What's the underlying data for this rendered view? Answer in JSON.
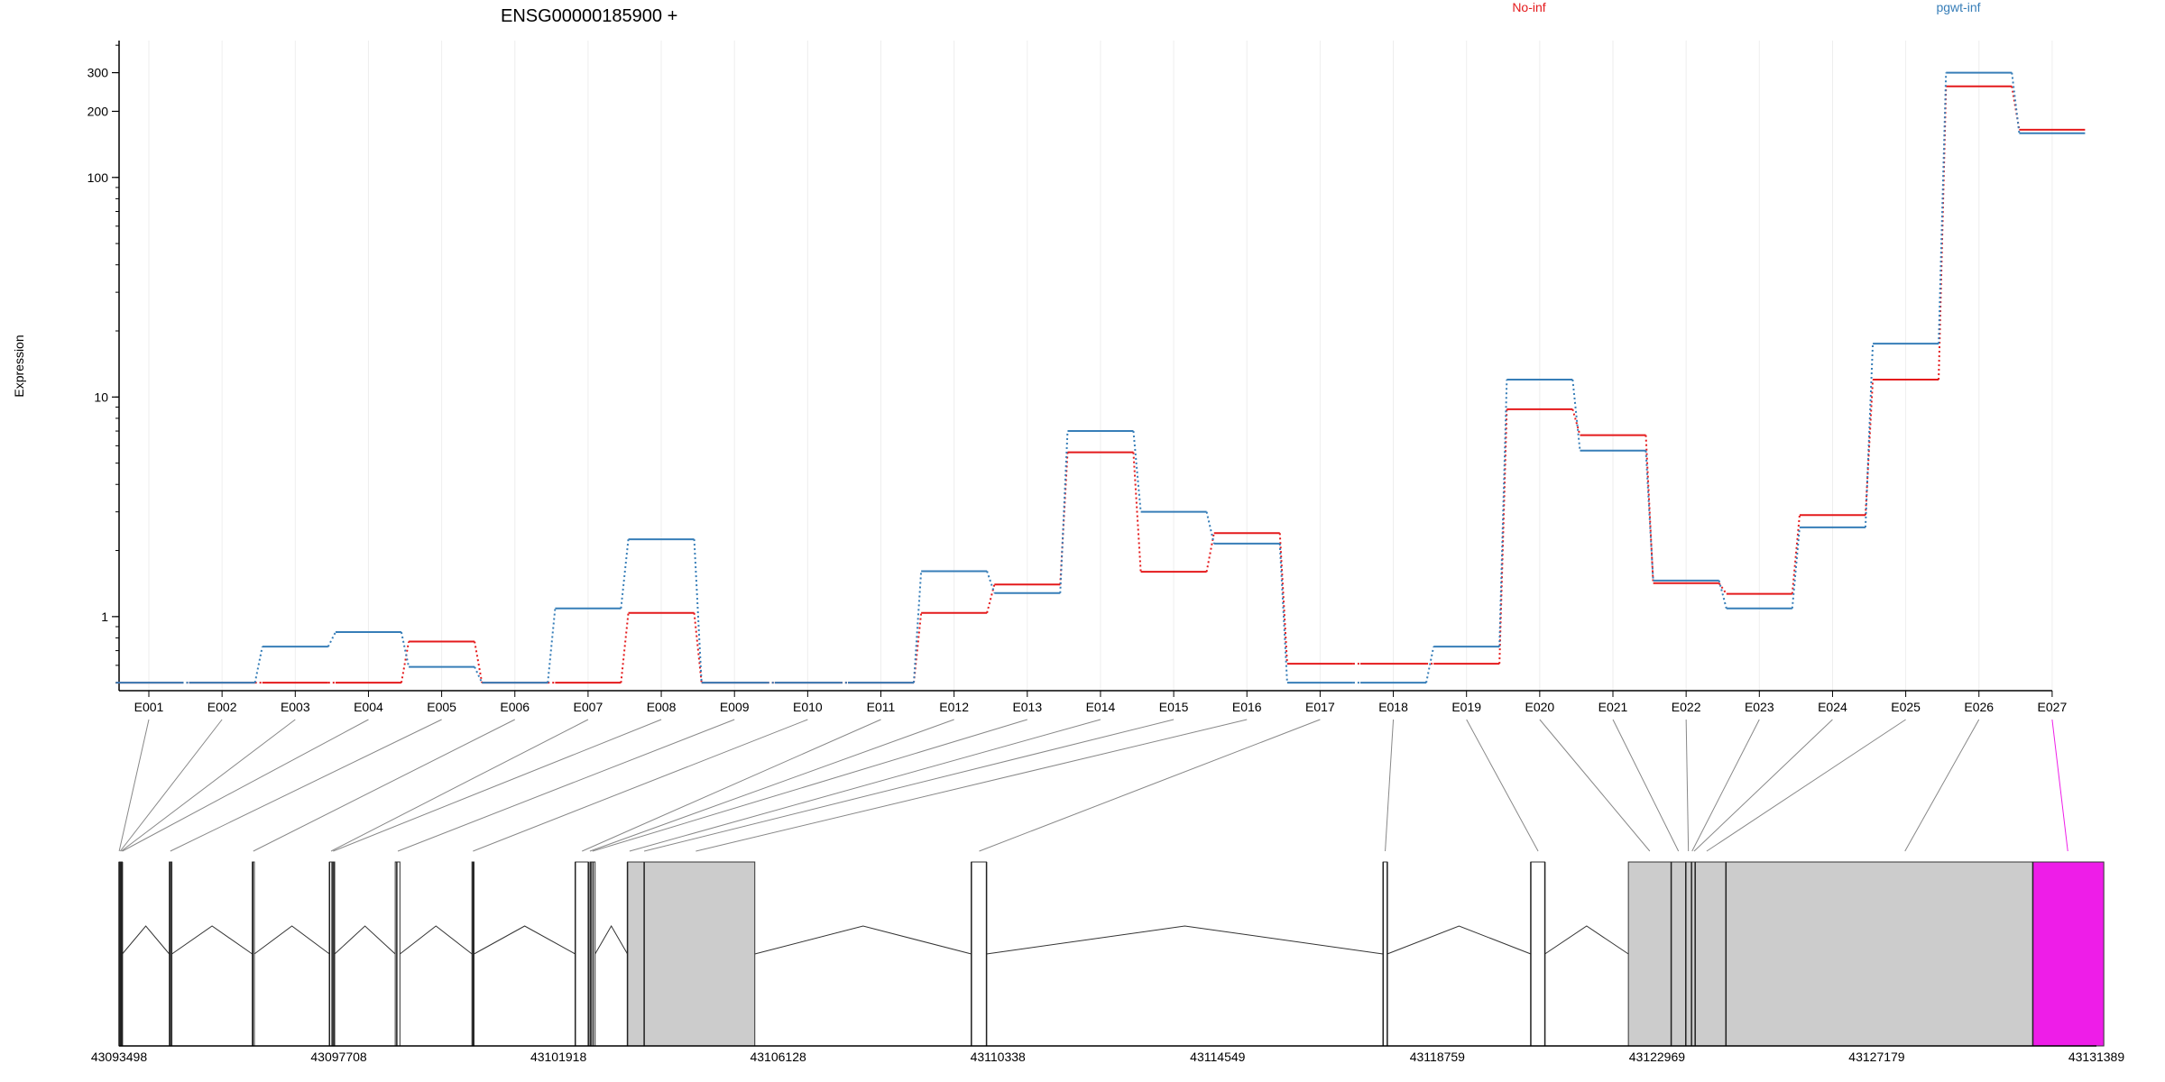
{
  "chart_data": {
    "type": "line",
    "title": "ENSG00000185900 +",
    "ylabel": "Expression",
    "yscale": "log",
    "ylim": [
      0.46,
      420
    ],
    "yticks": [
      1,
      10,
      100,
      200,
      300
    ],
    "ytick_labels": [
      "1",
      "10",
      "100",
      "200",
      "300"
    ],
    "categories": [
      "E001",
      "E002",
      "E003",
      "E004",
      "E005",
      "E006",
      "E007",
      "E008",
      "E009",
      "E010",
      "E011",
      "E012",
      "E013",
      "E014",
      "E015",
      "E016",
      "E017",
      "E018",
      "E019",
      "E020",
      "E021",
      "E022",
      "E023",
      "E024",
      "E025",
      "E026",
      "E027"
    ],
    "series": [
      {
        "name": "No-inf",
        "color": "#e41a1c",
        "values": [
          0.5,
          0.5,
          0.5,
          0.5,
          0.77,
          0.5,
          0.5,
          1.04,
          0.5,
          0.5,
          0.5,
          1.04,
          1.4,
          5.6,
          1.6,
          2.4,
          0.61,
          0.61,
          0.61,
          8.8,
          6.7,
          1.42,
          1.27,
          2.9,
          12.0,
          260,
          165
        ]
      },
      {
        "name": "pgwt-inf",
        "color": "#377eb8",
        "values": [
          0.5,
          0.5,
          0.73,
          0.85,
          0.59,
          0.5,
          1.09,
          2.25,
          0.5,
          0.5,
          0.5,
          1.61,
          1.28,
          7.0,
          3.0,
          2.15,
          0.5,
          0.5,
          0.73,
          12.0,
          5.7,
          1.46,
          1.09,
          2.55,
          17.5,
          300,
          159
        ]
      }
    ],
    "legend_placement": "top",
    "grid": "vertical",
    "gene_model": {
      "coordinate_ticks": [
        "43093498",
        "43097708",
        "43101918",
        "43106128",
        "43110338",
        "43114549",
        "43118759",
        "43122969",
        "43127179",
        "43131389"
      ],
      "coordinate_tick_values": [
        43093498,
        43097708,
        43101918,
        43106128,
        43110338,
        43114549,
        43118759,
        43122969,
        43127179,
        43131389
      ],
      "exons": [
        {
          "start": 43093498,
          "end": 43093560,
          "fill": "#cccccc"
        },
        {
          "start": 43094460,
          "end": 43094510,
          "fill": "#ffffff"
        },
        {
          "start": 43096050,
          "end": 43096090,
          "fill": "#ffffff"
        },
        {
          "start": 43097530,
          "end": 43097630,
          "fill": "#ffffff"
        },
        {
          "start": 43098790,
          "end": 43098880,
          "fill": "#ffffff"
        },
        {
          "start": 43100260,
          "end": 43100300,
          "fill": "#ffffff"
        },
        {
          "start": 43102240,
          "end": 43102490,
          "fill": "#ffffff"
        },
        {
          "start": 43102520,
          "end": 43102620,
          "fill": "#ffffff"
        },
        {
          "start": 43103240,
          "end": 43103560,
          "fill": "#cccccc"
        },
        {
          "start": 43103560,
          "end": 43105680,
          "fill": "#cccccc"
        },
        {
          "start": 43109830,
          "end": 43110120,
          "fill": "#ffffff"
        },
        {
          "start": 43117720,
          "end": 43117800,
          "fill": "#ffffff"
        },
        {
          "start": 43120550,
          "end": 43120820,
          "fill": "#ffffff"
        },
        {
          "start": 43122420,
          "end": 43123240,
          "fill": "#cccccc"
        },
        {
          "start": 43123240,
          "end": 43123520,
          "fill": "#cccccc"
        },
        {
          "start": 43123520,
          "end": 43124290,
          "fill": "#cccccc"
        },
        {
          "start": 43124290,
          "end": 43130170,
          "fill": "#cccccc"
        },
        {
          "start": 43130170,
          "end": 43131530,
          "fill": "#ee1de8"
        }
      ],
      "exon_lines": [
        43093498,
        43093520,
        43093540,
        43093560,
        43094470,
        43094500,
        43096060,
        43097530,
        43097580,
        43097610,
        43098820,
        43100280,
        43102240,
        43102490,
        43102540,
        43102580,
        43103240,
        43103560,
        43109830,
        43110120,
        43117720,
        43117800,
        43120550,
        43120820,
        43123240,
        43123520,
        43123630,
        43123700,
        43124290,
        43130170
      ],
      "introns": [
        [
          43093560,
          43094460
        ],
        [
          43094510,
          43096050
        ],
        [
          43096090,
          43097530
        ],
        [
          43097630,
          43098790
        ],
        [
          43098880,
          43100260
        ],
        [
          43100300,
          43102240
        ],
        [
          43102620,
          43103240
        ],
        [
          43105680,
          43109830
        ],
        [
          43110120,
          43117720
        ],
        [
          43117800,
          43120550
        ],
        [
          43120820,
          43122420
        ]
      ],
      "exon_links": [
        43093500,
        43093520,
        43093540,
        43093560,
        43094480,
        43096070,
        43097560,
        43097600,
        43098840,
        43100280,
        43102370,
        43102520,
        43102570,
        43103280,
        43103560,
        43104550,
        43109980,
        43117760,
        43120690,
        43122830,
        43123380,
        43123570,
        43123640,
        43123680,
        43123920,
        43127720,
        43130840
      ]
    }
  }
}
